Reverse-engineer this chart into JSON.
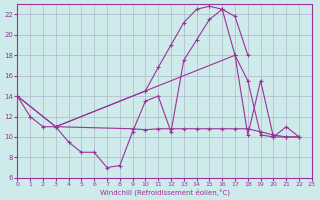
{
  "xlabel": "Windchill (Refroidissement éolien,°C)",
  "background_color": "#ceeaea",
  "grid_color": "#b0b8cc",
  "line_color": "#993399",
  "xmin": 0,
  "xmax": 23,
  "ymin": 6,
  "ymax": 23,
  "yticks": [
    6,
    8,
    10,
    12,
    14,
    16,
    18,
    20,
    22
  ],
  "xticks": [
    0,
    1,
    2,
    3,
    4,
    5,
    6,
    7,
    8,
    9,
    10,
    11,
    12,
    13,
    14,
    15,
    16,
    17,
    18,
    19,
    20,
    21,
    22,
    23
  ],
  "line1_x": [
    0,
    1,
    2,
    3,
    4,
    5,
    6,
    7,
    8,
    9,
    10,
    11,
    12,
    13,
    14,
    15,
    16,
    17,
    18,
    19,
    20,
    21,
    22
  ],
  "line1_y": [
    14.0,
    12.0,
    11.0,
    11.0,
    9.5,
    8.5,
    8.5,
    7.0,
    7.2,
    10.5,
    13.5,
    14.0,
    10.5,
    17.5,
    19.5,
    21.5,
    22.5,
    18.0,
    10.2,
    15.5,
    10.0,
    11.0,
    10.0
  ],
  "line2_x": [
    3,
    10,
    11,
    12,
    13,
    14,
    15,
    16,
    17,
    18
  ],
  "line2_y": [
    11.0,
    14.5,
    16.8,
    19.0,
    21.2,
    22.5,
    22.8,
    22.5,
    21.8,
    18.0
  ],
  "line3_x": [
    0,
    3,
    10,
    17,
    18,
    19,
    20,
    21,
    22
  ],
  "line3_y": [
    14.0,
    11.0,
    14.5,
    18.0,
    15.5,
    10.2,
    10.0,
    10.0,
    10.0
  ],
  "line4_x": [
    0,
    3,
    9,
    10,
    11,
    12,
    13,
    14,
    15,
    16,
    17,
    18,
    19,
    20,
    21,
    22
  ],
  "line4_y": [
    14.0,
    11.0,
    10.8,
    10.7,
    10.8,
    10.8,
    10.8,
    10.8,
    10.8,
    10.8,
    10.8,
    10.8,
    10.5,
    10.2,
    10.0,
    10.0
  ]
}
